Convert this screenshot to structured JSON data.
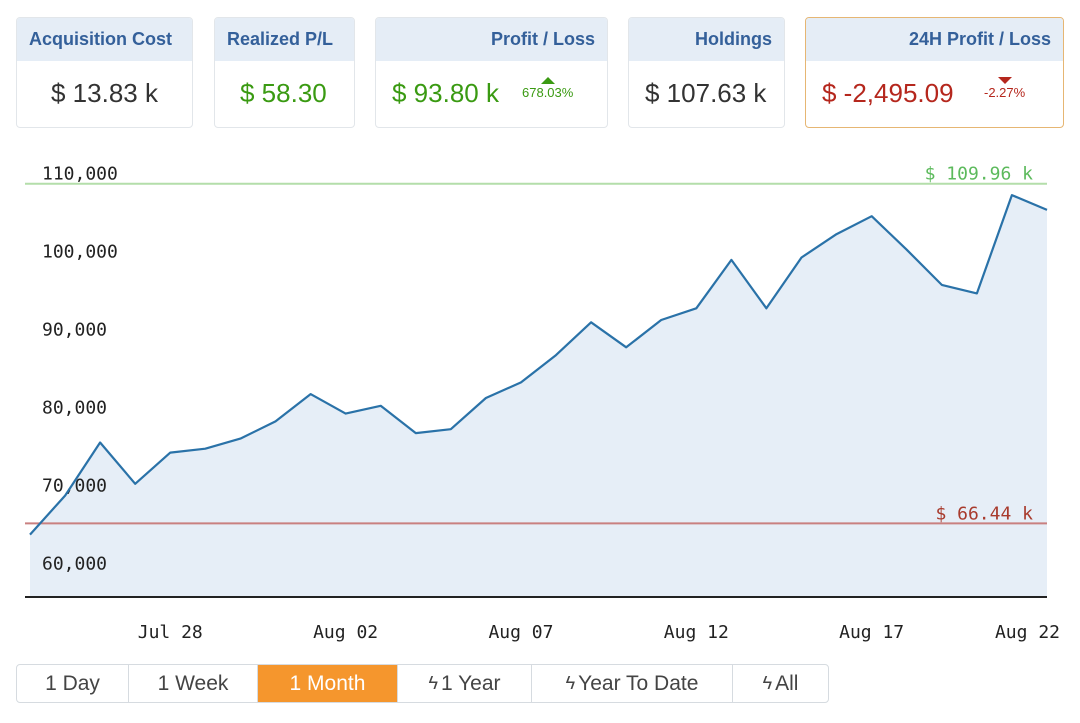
{
  "cards": [
    {
      "label": "Acquisition Cost",
      "value": "$ 13.83 k"
    },
    {
      "label": "Realized P/L",
      "value": "$ 58.30"
    },
    {
      "label": "Profit / Loss",
      "value": "$ 93.80 k",
      "delta": "678.03%",
      "direction": "up"
    },
    {
      "label": "Holdings",
      "value": "$ 107.63 k"
    },
    {
      "label": "24H Profit / Loss",
      "value": "$ -2,495.09",
      "delta": "-2.27%",
      "direction": "down"
    }
  ],
  "colors": {
    "header_bg": "#e5edf6",
    "header_text": "#34609a",
    "positive": "#3a9a12",
    "negative": "#b5271d",
    "line": "#2a72a8",
    "fill": "#e6eef7",
    "max_line": "#b4deaa",
    "max_text": "#5cba5c",
    "min_line": "#c98080",
    "min_text": "#a83a2c",
    "accent": "#f5962d"
  },
  "chart_data": {
    "type": "area",
    "x": [
      "Jul 24",
      "Jul 25",
      "Jul 26",
      "Jul 27",
      "Jul 28",
      "Jul 29",
      "Jul 30",
      "Jul 31",
      "Aug 01",
      "Aug 02",
      "Aug 03",
      "Aug 04",
      "Aug 05",
      "Aug 06",
      "Aug 07",
      "Aug 08",
      "Aug 09",
      "Aug 10",
      "Aug 11",
      "Aug 12",
      "Aug 13",
      "Aug 14",
      "Aug 15",
      "Aug 16",
      "Aug 17",
      "Aug 18",
      "Aug 19",
      "Aug 20",
      "Aug 21",
      "Aug 22"
    ],
    "values": [
      65000,
      70000,
      76800,
      71500,
      75500,
      76000,
      77300,
      79500,
      83000,
      80500,
      81500,
      78000,
      78500,
      82500,
      84500,
      88000,
      92200,
      89000,
      92500,
      94000,
      100200,
      94000,
      100500,
      103500,
      105800,
      101500,
      97000,
      95900,
      108500,
      106600
    ],
    "xticks": [
      "Jul 28",
      "Aug 02",
      "Aug 07",
      "Aug 12",
      "Aug 17",
      "Aug 22"
    ],
    "yticks": [
      "60,000",
      "70,000",
      "80,000",
      "90,000",
      "100,000",
      "110,000"
    ],
    "ylim": [
      57000,
      113000
    ],
    "max_label": "$ 109.96 k",
    "max_value": 109960,
    "min_label": "$ 66.44 k",
    "min_value": 66440
  },
  "tabs": [
    {
      "label": "1 Day",
      "bolt": false
    },
    {
      "label": "1 Week",
      "bolt": false
    },
    {
      "label": "1 Month",
      "bolt": false,
      "active": true
    },
    {
      "label": "1 Year",
      "bolt": true
    },
    {
      "label": "Year To Date",
      "bolt": true
    },
    {
      "label": "All",
      "bolt": true
    }
  ]
}
